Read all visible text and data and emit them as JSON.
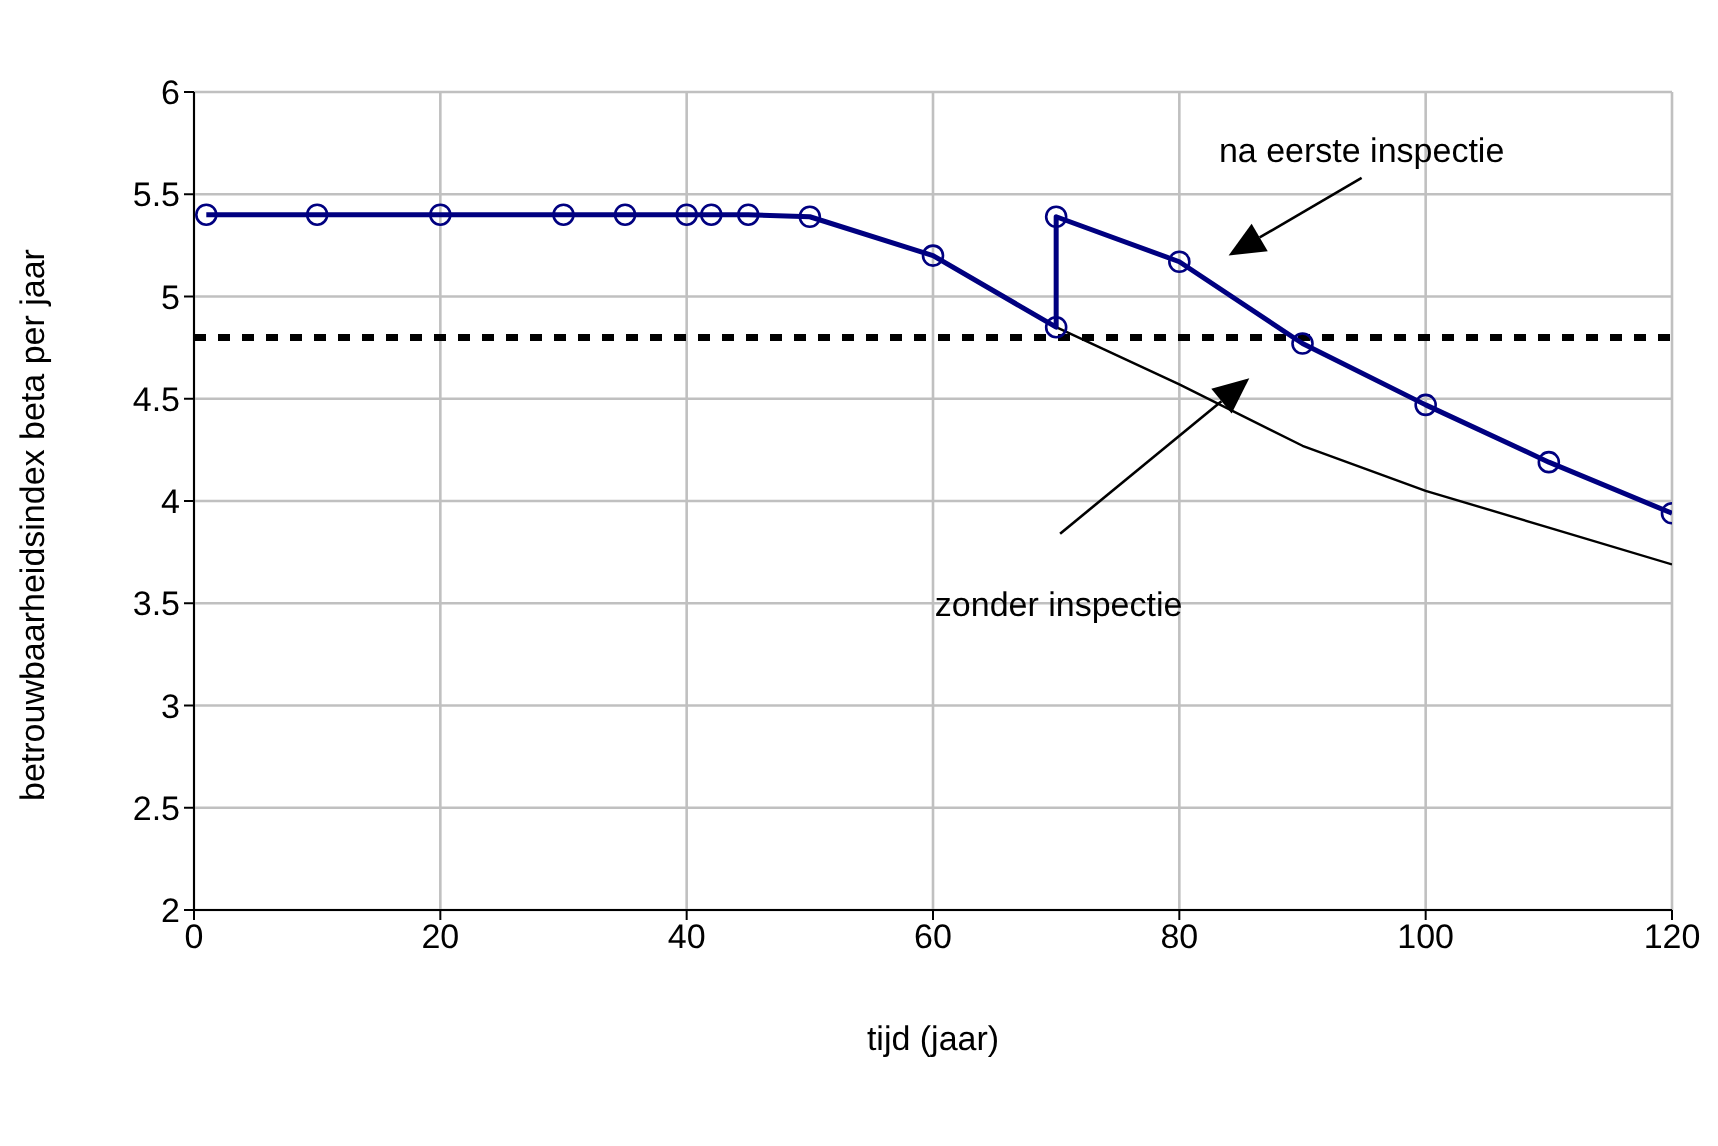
{
  "chart_data": {
    "type": "line",
    "xlabel": "tijd (jaar)",
    "ylabel": "betrouwbaarheidsindex beta per jaar",
    "xlim": [
      0,
      120
    ],
    "xticks": [
      0,
      20,
      40,
      60,
      80,
      100,
      120
    ],
    "ylim": [
      2,
      6
    ],
    "yticks": [
      2,
      2.5,
      3,
      3.5,
      4,
      4.5,
      5,
      5.5,
      6
    ],
    "grid": true,
    "series": [
      {
        "color": "#000000",
        "marker": "none",
        "x": [
          70,
          80,
          90,
          100,
          110,
          120
        ],
        "values": [
          4.85,
          4.57,
          4.27,
          4.05,
          3.87,
          3.69
        ]
      },
      {
        "color": "#000080",
        "marker": "circle",
        "x": [
          1,
          10,
          20,
          30,
          35,
          40,
          42,
          45,
          50,
          60,
          70,
          70,
          80,
          90,
          100,
          110,
          120
        ],
        "values": [
          5.4,
          5.4,
          5.4,
          5.4,
          5.4,
          5.4,
          5.4,
          5.4,
          5.39,
          5.2,
          4.85,
          5.39,
          5.17,
          4.77,
          4.47,
          4.19,
          3.94
        ]
      }
    ],
    "ref_lines": [
      {
        "axis": "y",
        "value": 4.8,
        "color": "#000000",
        "line_style": "dashed"
      }
    ],
    "annotations": [
      "na eerste inspectie",
      "zonder inspectie"
    ]
  }
}
